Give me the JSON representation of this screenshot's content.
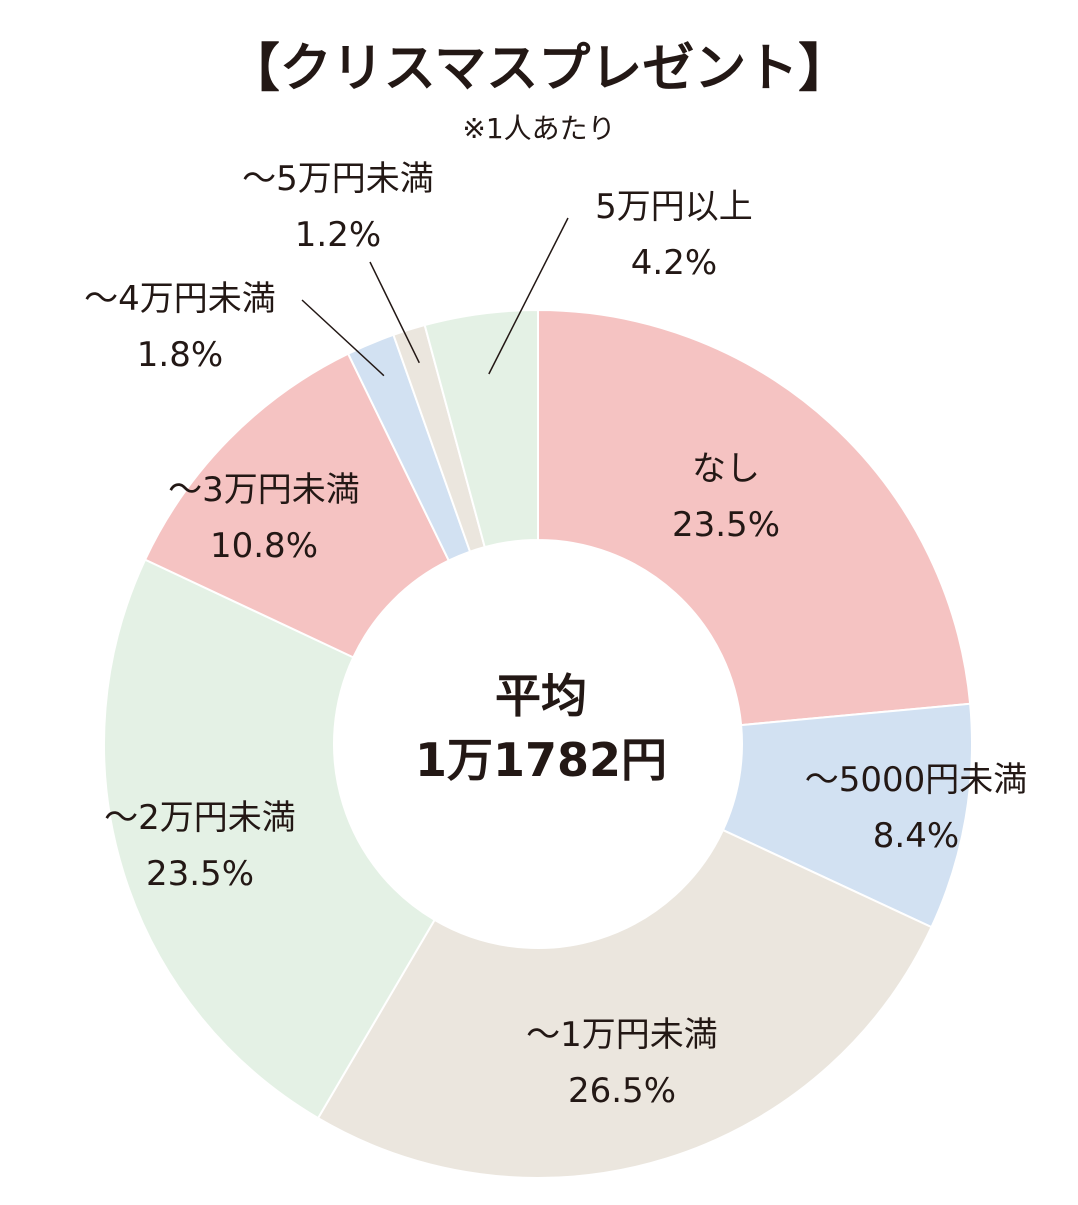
{
  "chart_data": {
    "type": "pie",
    "donut": true,
    "title": "【クリスマスプレゼント】",
    "subtitle": "※1人あたり",
    "center_label": "平均",
    "center_value": "1万1782円",
    "slices": [
      {
        "label": "なし",
        "value_label": "23.5%",
        "value": 23.5,
        "color": "#f5c3c2"
      },
      {
        "label": "〜5000円未満",
        "value_label": "8.4%",
        "value": 8.4,
        "color": "#d2e1f2"
      },
      {
        "label": "〜1万円未満",
        "value_label": "26.5%",
        "value": 26.5,
        "color": "#ebe6de"
      },
      {
        "label": "〜2万円未満",
        "value_label": "23.5%",
        "value": 23.5,
        "color": "#e4f1e5"
      },
      {
        "label": "〜3万円未満",
        "value_label": "10.8%",
        "value": 10.8,
        "color": "#f5c3c2"
      },
      {
        "label": "〜4万円未満",
        "value_label": "1.8%",
        "value": 1.8,
        "color": "#d2e1f2"
      },
      {
        "label": "〜5万円未満",
        "value_label": "1.2%",
        "value": 1.2,
        "color": "#ebe6de"
      },
      {
        "label": "5万円以上",
        "value_label": "4.2%",
        "value": 4.2,
        "color": "#e4f1e5"
      }
    ]
  }
}
